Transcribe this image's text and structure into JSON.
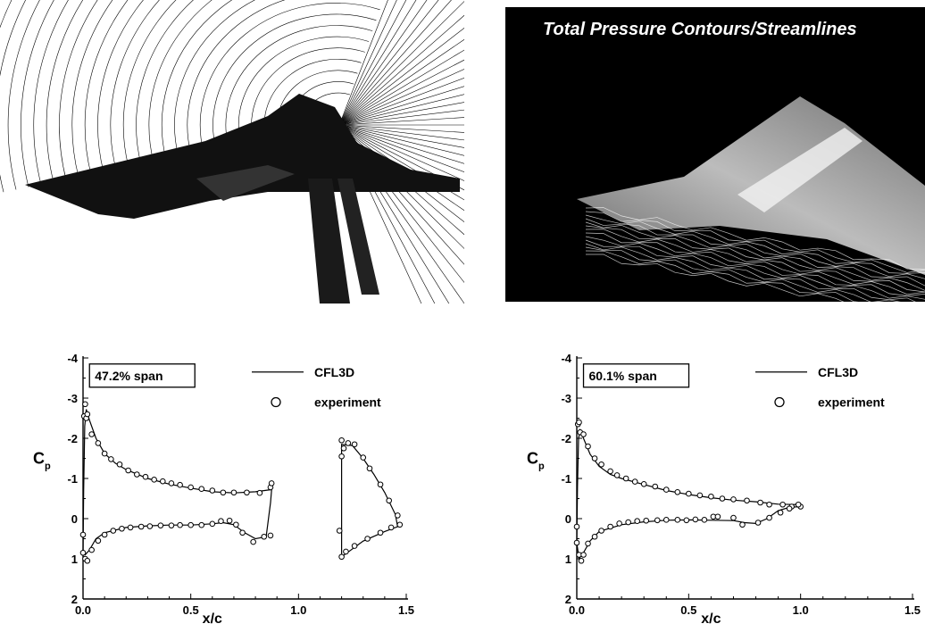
{
  "panels": {
    "contour_title": "Total Pressure Contours/Streamlines"
  },
  "chart_data": [
    {
      "type": "line",
      "span_label": "47.2% span",
      "xlabel": "x/c",
      "ylabel_main": "C",
      "ylabel_sub": "p",
      "ylim": [
        2,
        -4
      ],
      "xlim": [
        0,
        1.5
      ],
      "xticks": [
        "0.0",
        "0.5",
        "1.0",
        "1.5"
      ],
      "yticks": [
        "-4",
        "-3",
        "-2",
        "-1",
        "0",
        "1",
        "2"
      ],
      "legend": {
        "line_label": "CFL3D",
        "marker_label": "experiment",
        "position": "top-right"
      },
      "series": [
        {
          "name": "CFL3D",
          "kind": "line",
          "segments": [
            [
              [
                0.0,
                0.85
              ],
              [
                0.003,
                -0.7
              ],
              [
                0.008,
                -2.3
              ],
              [
                0.015,
                -2.72
              ],
              [
                0.03,
                -2.45
              ],
              [
                0.06,
                -2.0
              ],
              [
                0.1,
                -1.62
              ],
              [
                0.15,
                -1.38
              ],
              [
                0.2,
                -1.22
              ],
              [
                0.3,
                -1.0
              ],
              [
                0.4,
                -0.86
              ],
              [
                0.5,
                -0.76
              ],
              [
                0.6,
                -0.67
              ],
              [
                0.7,
                -0.64
              ],
              [
                0.8,
                -0.67
              ],
              [
                0.87,
                -0.72
              ]
            ],
            [
              [
                0.0,
                0.85
              ],
              [
                0.01,
                0.9
              ],
              [
                0.03,
                0.78
              ],
              [
                0.06,
                0.5
              ],
              [
                0.1,
                0.35
              ],
              [
                0.2,
                0.22
              ],
              [
                0.3,
                0.18
              ],
              [
                0.4,
                0.16
              ],
              [
                0.5,
                0.16
              ],
              [
                0.6,
                0.13
              ],
              [
                0.65,
                0.1
              ],
              [
                0.7,
                0.15
              ],
              [
                0.75,
                0.35
              ],
              [
                0.8,
                0.5
              ],
              [
                0.85,
                0.45
              ],
              [
                0.87,
                -0.4
              ],
              [
                0.875,
                -0.72
              ]
            ],
            [
              [
                1.2,
                0.95
              ],
              [
                1.2,
                -1.85
              ],
              [
                1.25,
                -1.82
              ],
              [
                1.3,
                -1.5
              ],
              [
                1.35,
                -1.1
              ],
              [
                1.4,
                -0.65
              ],
              [
                1.45,
                -0.1
              ],
              [
                1.46,
                0.2
              ],
              [
                1.4,
                0.32
              ],
              [
                1.3,
                0.56
              ],
              [
                1.2,
                0.95
              ]
            ]
          ]
        },
        {
          "name": "experiment",
          "kind": "marker",
          "points": [
            [
              0.0,
              0.85
            ],
            [
              0.005,
              -2.55
            ],
            [
              0.01,
              -2.85
            ],
            [
              0.015,
              -2.5
            ],
            [
              0.02,
              -2.6
            ],
            [
              0.04,
              -2.1
            ],
            [
              0.07,
              -1.88
            ],
            [
              0.1,
              -1.62
            ],
            [
              0.13,
              -1.48
            ],
            [
              0.17,
              -1.35
            ],
            [
              0.21,
              -1.2
            ],
            [
              0.25,
              -1.1
            ],
            [
              0.29,
              -1.04
            ],
            [
              0.33,
              -0.97
            ],
            [
              0.37,
              -0.93
            ],
            [
              0.41,
              -0.88
            ],
            [
              0.45,
              -0.84
            ],
            [
              0.5,
              -0.78
            ],
            [
              0.55,
              -0.74
            ],
            [
              0.6,
              -0.7
            ],
            [
              0.65,
              -0.65
            ],
            [
              0.7,
              -0.65
            ],
            [
              0.76,
              -0.65
            ],
            [
              0.82,
              -0.64
            ],
            [
              0.87,
              -0.78
            ],
            [
              0.875,
              -0.88
            ],
            [
              0.0,
              0.4
            ],
            [
              0.01,
              1.0
            ],
            [
              0.02,
              1.05
            ],
            [
              0.04,
              0.78
            ],
            [
              0.07,
              0.55
            ],
            [
              0.1,
              0.4
            ],
            [
              0.14,
              0.3
            ],
            [
              0.18,
              0.25
            ],
            [
              0.22,
              0.22
            ],
            [
              0.27,
              0.2
            ],
            [
              0.31,
              0.19
            ],
            [
              0.36,
              0.17
            ],
            [
              0.41,
              0.17
            ],
            [
              0.45,
              0.16
            ],
            [
              0.5,
              0.16
            ],
            [
              0.55,
              0.16
            ],
            [
              0.6,
              0.13
            ],
            [
              0.64,
              0.06
            ],
            [
              0.68,
              0.05
            ],
            [
              0.71,
              0.15
            ],
            [
              0.74,
              0.35
            ],
            [
              0.79,
              0.58
            ],
            [
              0.84,
              0.45
            ],
            [
              0.87,
              0.42
            ],
            [
              1.2,
              -1.95
            ],
            [
              1.21,
              -1.75
            ],
            [
              1.2,
              -1.55
            ],
            [
              1.23,
              -1.88
            ],
            [
              1.26,
              -1.85
            ],
            [
              1.3,
              -1.52
            ],
            [
              1.33,
              -1.25
            ],
            [
              1.38,
              -0.85
            ],
            [
              1.42,
              -0.45
            ],
            [
              1.46,
              -0.08
            ],
            [
              1.47,
              0.15
            ],
            [
              1.43,
              0.22
            ],
            [
              1.38,
              0.35
            ],
            [
              1.32,
              0.5
            ],
            [
              1.26,
              0.68
            ],
            [
              1.22,
              0.82
            ],
            [
              1.2,
              0.95
            ],
            [
              1.19,
              0.3
            ]
          ]
        }
      ]
    },
    {
      "type": "line",
      "span_label": "60.1% span",
      "xlabel": "x/c",
      "ylabel_main": "C",
      "ylabel_sub": "p",
      "ylim": [
        2,
        -4
      ],
      "xlim": [
        0,
        1.5
      ],
      "xticks": [
        "0.0",
        "0.5",
        "1.0",
        "1.5"
      ],
      "yticks": [
        "-4",
        "-3",
        "-2",
        "-1",
        "0",
        "1",
        "2"
      ],
      "legend": {
        "line_label": "CFL3D",
        "marker_label": "experiment",
        "position": "top-right"
      },
      "series": [
        {
          "name": "CFL3D",
          "kind": "line",
          "segments": [
            [
              [
                0.0,
                0.6
              ],
              [
                0.003,
                -0.8
              ],
              [
                0.008,
                -2.0
              ],
              [
                0.015,
                -2.2
              ],
              [
                0.03,
                -2.0
              ],
              [
                0.06,
                -1.6
              ],
              [
                0.1,
                -1.3
              ],
              [
                0.15,
                -1.1
              ],
              [
                0.2,
                -1.0
              ],
              [
                0.3,
                -0.85
              ],
              [
                0.4,
                -0.7
              ],
              [
                0.5,
                -0.6
              ],
              [
                0.6,
                -0.52
              ],
              [
                0.7,
                -0.46
              ],
              [
                0.8,
                -0.42
              ],
              [
                0.9,
                -0.36
              ],
              [
                1.0,
                -0.35
              ]
            ],
            [
              [
                0.0,
                0.6
              ],
              [
                0.01,
                1.0
              ],
              [
                0.03,
                0.85
              ],
              [
                0.06,
                0.55
              ],
              [
                0.1,
                0.32
              ],
              [
                0.2,
                0.15
              ],
              [
                0.3,
                0.08
              ],
              [
                0.4,
                0.04
              ],
              [
                0.5,
                0.03
              ],
              [
                0.6,
                0.04
              ],
              [
                0.7,
                0.05
              ],
              [
                0.75,
                0.1
              ],
              [
                0.8,
                0.12
              ],
              [
                0.85,
                0.0
              ],
              [
                0.9,
                -0.2
              ],
              [
                0.95,
                -0.28
              ],
              [
                1.0,
                -0.3
              ]
            ]
          ]
        },
        {
          "name": "experiment",
          "kind": "marker",
          "points": [
            [
              0.0,
              0.6
            ],
            [
              0.005,
              -2.35
            ],
            [
              0.01,
              -2.4
            ],
            [
              0.015,
              -2.15
            ],
            [
              0.03,
              -2.1
            ],
            [
              0.05,
              -1.8
            ],
            [
              0.08,
              -1.5
            ],
            [
              0.11,
              -1.35
            ],
            [
              0.15,
              -1.18
            ],
            [
              0.18,
              -1.08
            ],
            [
              0.22,
              -1.0
            ],
            [
              0.26,
              -0.92
            ],
            [
              0.3,
              -0.86
            ],
            [
              0.35,
              -0.8
            ],
            [
              0.4,
              -0.72
            ],
            [
              0.45,
              -0.66
            ],
            [
              0.5,
              -0.62
            ],
            [
              0.55,
              -0.58
            ],
            [
              0.6,
              -0.55
            ],
            [
              0.65,
              -0.5
            ],
            [
              0.7,
              -0.48
            ],
            [
              0.76,
              -0.45
            ],
            [
              0.82,
              -0.4
            ],
            [
              0.86,
              -0.35
            ],
            [
              0.92,
              -0.35
            ],
            [
              0.96,
              -0.3
            ],
            [
              1.0,
              -0.3
            ],
            [
              0.0,
              0.2
            ],
            [
              0.01,
              0.9
            ],
            [
              0.02,
              1.05
            ],
            [
              0.03,
              0.9
            ],
            [
              0.05,
              0.62
            ],
            [
              0.08,
              0.45
            ],
            [
              0.11,
              0.3
            ],
            [
              0.15,
              0.2
            ],
            [
              0.19,
              0.12
            ],
            [
              0.23,
              0.09
            ],
            [
              0.27,
              0.06
            ],
            [
              0.31,
              0.05
            ],
            [
              0.36,
              0.04
            ],
            [
              0.4,
              0.03
            ],
            [
              0.45,
              0.03
            ],
            [
              0.49,
              0.04
            ],
            [
              0.53,
              0.02
            ],
            [
              0.57,
              0.03
            ],
            [
              0.61,
              -0.05
            ],
            [
              0.63,
              -0.05
            ],
            [
              0.7,
              -0.02
            ],
            [
              0.74,
              0.15
            ],
            [
              0.81,
              0.1
            ],
            [
              0.86,
              -0.02
            ],
            [
              0.91,
              -0.15
            ],
            [
              0.95,
              -0.25
            ],
            [
              0.99,
              -0.35
            ]
          ]
        }
      ]
    }
  ]
}
